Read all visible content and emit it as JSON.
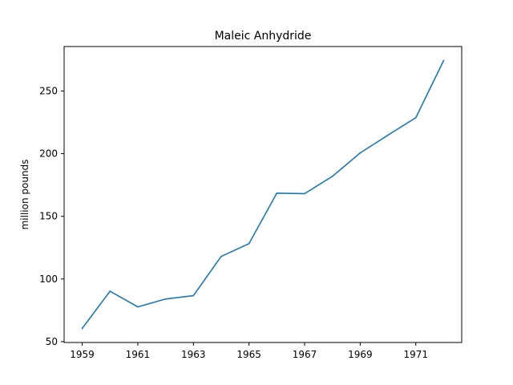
{
  "chart_data": {
    "type": "line",
    "title": "Maleic Anhydride",
    "xlabel": "",
    "ylabel": "million pounds",
    "x": [
      1959,
      1960,
      1961,
      1962,
      1963,
      1964,
      1965,
      1966,
      1967,
      1968,
      1969,
      1970,
      1971,
      1972
    ],
    "series": [
      {
        "values": [
          60.5,
          90.2,
          77.7,
          84.0,
          86.7,
          118.0,
          128.2,
          168.5,
          168.1,
          181.9,
          200.6,
          214.8,
          228.7,
          274.3
        ]
      }
    ],
    "xticks": [
      1959,
      1961,
      1963,
      1965,
      1967,
      1969,
      1971
    ],
    "yticks": [
      50,
      100,
      150,
      200,
      250
    ],
    "xlim": [
      1958.35,
      1972.65
    ],
    "ylim": [
      49.3,
      285.5
    ],
    "grid": false,
    "colors": {
      "line": "#1f77b4",
      "axis": "#000000"
    }
  }
}
